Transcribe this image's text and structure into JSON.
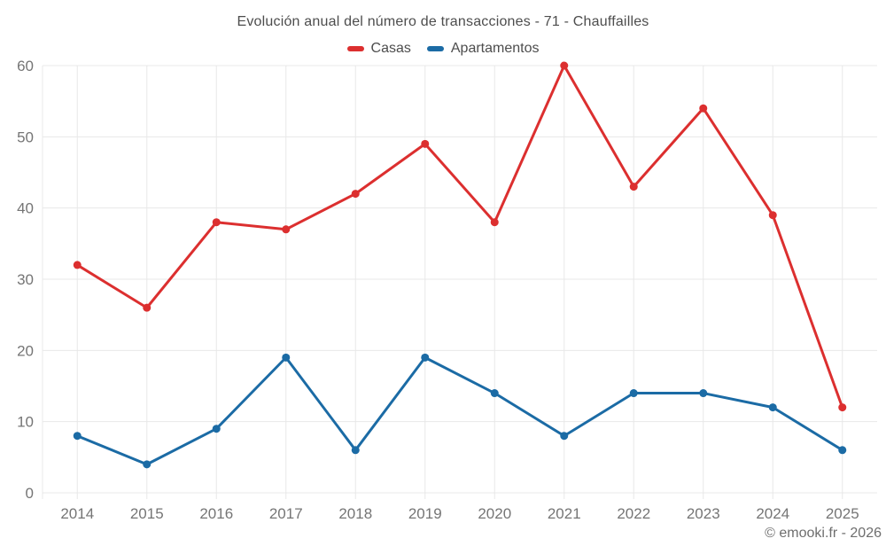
{
  "footer": {
    "attribution": "© emooki.fr - 2026"
  },
  "chart_data": {
    "type": "line",
    "title": "Evolución anual del número de transacciones - 71 - Chauffailles",
    "categories": [
      "2014",
      "2015",
      "2016",
      "2017",
      "2018",
      "2019",
      "2020",
      "2021",
      "2022",
      "2023",
      "2024",
      "2025"
    ],
    "series": [
      {
        "name": "Casas",
        "color": "#dc2f2f",
        "values": [
          32,
          26,
          38,
          37,
          42,
          49,
          38,
          60,
          43,
          54,
          39,
          12
        ]
      },
      {
        "name": "Apartamentos",
        "color": "#1b6ba5",
        "values": [
          8,
          4,
          9,
          19,
          6,
          19,
          14,
          8,
          14,
          14,
          12,
          6
        ]
      }
    ],
    "xlabel": "",
    "ylabel": "",
    "ylim": [
      0,
      60
    ],
    "ytick_step": 10,
    "yticks": [
      0,
      10,
      20,
      30,
      40,
      50,
      60
    ],
    "grid": true,
    "legend_position": "top",
    "marker": "circle",
    "colors": {
      "grid": "#e8e8e8",
      "axis_label": "#757575",
      "title_text": "#4d4d4d",
      "attribution_text": "#6e6e6e",
      "background": "#ffffff"
    }
  }
}
